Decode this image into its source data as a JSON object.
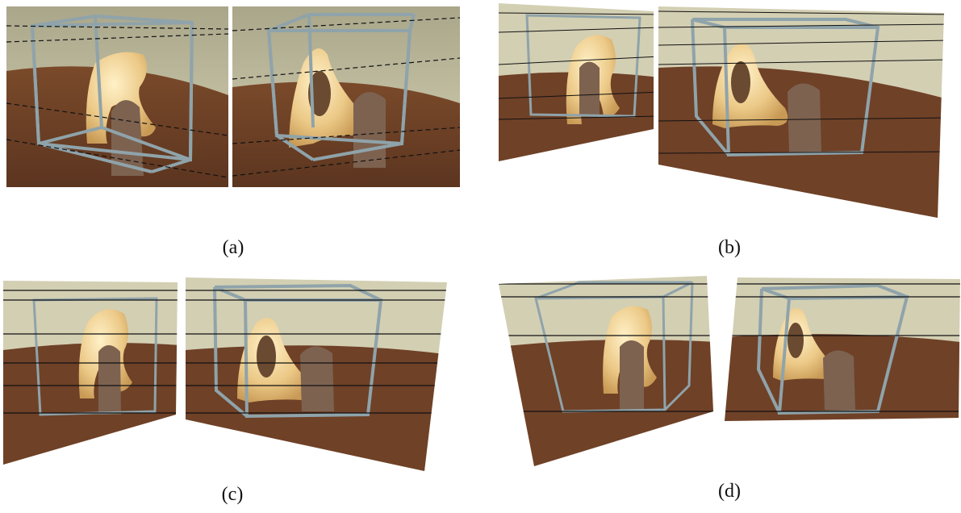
{
  "figure": {
    "captions": {
      "a": "(a)",
      "b": "(b)",
      "c": "(c)",
      "d": "(d)"
    },
    "colors": {
      "wall": "#c9c6a8",
      "table": "#6b3f24",
      "vase": "#e8c884",
      "statue": "#7a5e4a",
      "frame": "#8fa3aa",
      "epipolar_line": "#111111"
    }
  }
}
